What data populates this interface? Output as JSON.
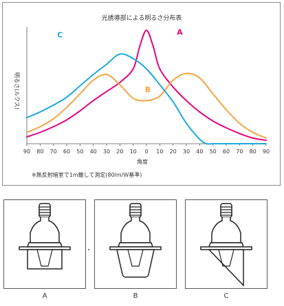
{
  "chart_data": {
    "type": "line",
    "title": "光誘導部による明るさ分布表",
    "xlabel": "角度",
    "ylabel": "明るさ(ルクス)",
    "note": "※無反射暗室で1m離して測定(80lm/W基準)",
    "xlim": [
      -90,
      90
    ],
    "ylim": [
      0,
      100
    ],
    "x_tick_labels": [
      "90",
      "80",
      "70",
      "60",
      "50",
      "40",
      "30",
      "20",
      "10",
      "0",
      "10",
      "20",
      "30",
      "40",
      "50",
      "60",
      "70",
      "80",
      "90"
    ],
    "grid": false,
    "series": [
      {
        "name": "A",
        "color": "#e6007e",
        "x": [
          -90,
          -80,
          -70,
          -60,
          -50,
          -40,
          -30,
          -20,
          -10,
          -5,
          0,
          5,
          10,
          20,
          30,
          40,
          50,
          60,
          70,
          80,
          90
        ],
        "y": [
          6,
          10,
          15,
          21,
          29,
          38,
          46,
          54,
          66,
          86,
          100,
          86,
          66,
          50,
          38,
          28,
          20,
          14,
          9,
          5,
          3
        ]
      },
      {
        "name": "B",
        "color": "#f5a442",
        "x": [
          -90,
          -80,
          -70,
          -60,
          -50,
          -40,
          -30,
          -20,
          -10,
          0,
          10,
          20,
          30,
          40,
          50,
          60,
          70,
          80,
          90
        ],
        "y": [
          10,
          15,
          22,
          32,
          44,
          56,
          61,
          52,
          40,
          38,
          42,
          56,
          62,
          58,
          44,
          30,
          18,
          10,
          5
        ]
      },
      {
        "name": "C",
        "color": "#1aa8dc",
        "x": [
          -90,
          -80,
          -70,
          -60,
          -50,
          -40,
          -30,
          -20,
          -10,
          0,
          10,
          20,
          30,
          40,
          45,
          50,
          60,
          70,
          80,
          90
        ],
        "y": [
          23,
          28,
          34,
          41,
          51,
          61,
          70,
          79,
          75,
          66,
          52,
          37,
          18,
          4,
          0,
          0,
          0,
          0,
          0,
          0
        ]
      }
    ]
  },
  "panels": [
    {
      "label": "A"
    },
    {
      "label": "B"
    },
    {
      "label": "C"
    }
  ]
}
